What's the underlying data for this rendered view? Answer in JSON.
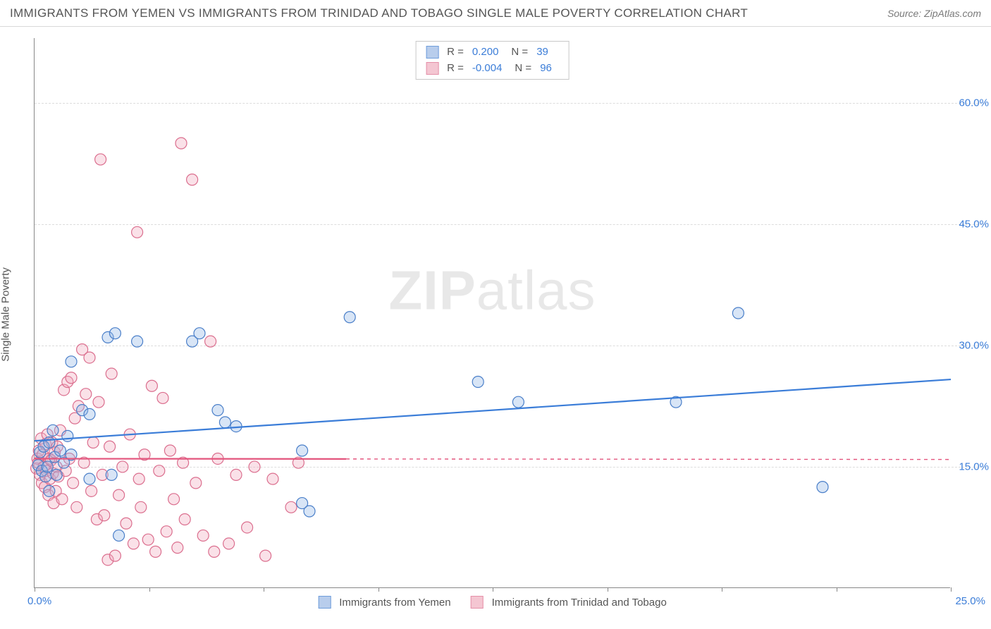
{
  "title": "IMMIGRANTS FROM YEMEN VS IMMIGRANTS FROM TRINIDAD AND TOBAGO SINGLE MALE POVERTY CORRELATION CHART",
  "source": "Source: ZipAtlas.com",
  "ylabel": "Single Male Poverty",
  "watermark_bold": "ZIP",
  "watermark_light": "atlas",
  "chart": {
    "type": "scatter",
    "background_color": "#ffffff",
    "grid_color": "#dcdcdc",
    "axis_color": "#888888",
    "tick_label_color": "#3b7dd8",
    "xlim": [
      0,
      25
    ],
    "ylim": [
      0,
      68
    ],
    "ytick_values": [
      15,
      30,
      45,
      60
    ],
    "ytick_labels": [
      "15.0%",
      "30.0%",
      "45.0%",
      "60.0%"
    ],
    "xtick_values": [
      0,
      3.125,
      6.25,
      9.375,
      12.5,
      15.625,
      18.75,
      21.875,
      25
    ],
    "xaxis_label_min": "0.0%",
    "xaxis_label_max": "25.0%",
    "marker_radius": 8,
    "marker_stroke_width": 1.2,
    "marker_fill_opacity": 0.35,
    "trend_line_width": 2.2,
    "trend_dash_width": 1.4
  },
  "series": [
    {
      "name": "Immigrants from Yemen",
      "swatch_fill": "#b8cdec",
      "swatch_border": "#6f9ddb",
      "marker_fill": "#8eb4e6",
      "marker_stroke": "#4a7fc9",
      "line_color": "#3b7dd8",
      "stats": {
        "R": "0.200",
        "N": "39"
      },
      "trend": {
        "x1": 0,
        "y1": 18.2,
        "x2": 25,
        "y2": 25.8,
        "solid_to_x": 25
      },
      "points": [
        [
          0.1,
          15.2
        ],
        [
          0.15,
          16.8
        ],
        [
          0.2,
          14.5
        ],
        [
          0.25,
          17.5
        ],
        [
          0.3,
          13.8
        ],
        [
          0.35,
          15.0
        ],
        [
          0.4,
          18.0
        ],
        [
          0.4,
          12.0
        ],
        [
          0.5,
          19.5
        ],
        [
          0.55,
          16.2
        ],
        [
          0.6,
          14.0
        ],
        [
          0.7,
          17.0
        ],
        [
          0.8,
          15.5
        ],
        [
          0.9,
          18.8
        ],
        [
          1.0,
          16.5
        ],
        [
          1.0,
          28.0
        ],
        [
          1.3,
          22.0
        ],
        [
          1.5,
          21.5
        ],
        [
          1.5,
          13.5
        ],
        [
          2.0,
          31.0
        ],
        [
          2.1,
          14.0
        ],
        [
          2.2,
          31.5
        ],
        [
          2.3,
          6.5
        ],
        [
          2.8,
          30.5
        ],
        [
          4.3,
          30.5
        ],
        [
          4.5,
          31.5
        ],
        [
          5.0,
          22.0
        ],
        [
          5.2,
          20.5
        ],
        [
          5.5,
          20.0
        ],
        [
          7.3,
          17.0
        ],
        [
          7.3,
          10.5
        ],
        [
          7.5,
          9.5
        ],
        [
          8.6,
          33.5
        ],
        [
          12.1,
          25.5
        ],
        [
          13.2,
          23.0
        ],
        [
          17.5,
          23.0
        ],
        [
          19.2,
          34.0
        ],
        [
          21.5,
          12.5
        ]
      ]
    },
    {
      "name": "Immigrants from Trinidad and Tobago",
      "swatch_fill": "#f4c6d2",
      "swatch_border": "#e58fa8",
      "marker_fill": "#f2a8bc",
      "marker_stroke": "#db6e8e",
      "line_color": "#e3557d",
      "stats": {
        "R": "-0.004",
        "N": "96"
      },
      "trend": {
        "x1": 0,
        "y1": 16.0,
        "x2": 25,
        "y2": 15.9,
        "solid_to_x": 8.5
      },
      "points": [
        [
          0.05,
          14.8
        ],
        [
          0.08,
          16.0
        ],
        [
          0.1,
          15.5
        ],
        [
          0.12,
          17.0
        ],
        [
          0.15,
          14.0
        ],
        [
          0.18,
          18.5
        ],
        [
          0.2,
          13.0
        ],
        [
          0.22,
          16.5
        ],
        [
          0.25,
          15.0
        ],
        [
          0.28,
          12.5
        ],
        [
          0.3,
          17.8
        ],
        [
          0.32,
          14.5
        ],
        [
          0.35,
          19.0
        ],
        [
          0.38,
          11.5
        ],
        [
          0.4,
          16.0
        ],
        [
          0.42,
          13.5
        ],
        [
          0.45,
          15.8
        ],
        [
          0.48,
          18.0
        ],
        [
          0.5,
          14.2
        ],
        [
          0.52,
          10.5
        ],
        [
          0.55,
          16.8
        ],
        [
          0.58,
          12.0
        ],
        [
          0.6,
          15.0
        ],
        [
          0.62,
          17.5
        ],
        [
          0.65,
          13.8
        ],
        [
          0.7,
          19.5
        ],
        [
          0.75,
          11.0
        ],
        [
          0.8,
          24.5
        ],
        [
          0.85,
          14.5
        ],
        [
          0.9,
          25.5
        ],
        [
          0.95,
          16.0
        ],
        [
          1.0,
          26.0
        ],
        [
          1.05,
          13.0
        ],
        [
          1.1,
          21.0
        ],
        [
          1.15,
          10.0
        ],
        [
          1.2,
          22.5
        ],
        [
          1.3,
          29.5
        ],
        [
          1.35,
          15.5
        ],
        [
          1.4,
          24.0
        ],
        [
          1.5,
          28.5
        ],
        [
          1.55,
          12.0
        ],
        [
          1.6,
          18.0
        ],
        [
          1.7,
          8.5
        ],
        [
          1.75,
          23.0
        ],
        [
          1.8,
          53.0
        ],
        [
          1.85,
          14.0
        ],
        [
          1.9,
          9.0
        ],
        [
          2.0,
          3.5
        ],
        [
          2.05,
          17.5
        ],
        [
          2.1,
          26.5
        ],
        [
          2.2,
          4.0
        ],
        [
          2.3,
          11.5
        ],
        [
          2.4,
          15.0
        ],
        [
          2.5,
          8.0
        ],
        [
          2.6,
          19.0
        ],
        [
          2.7,
          5.5
        ],
        [
          2.8,
          44.0
        ],
        [
          2.85,
          13.5
        ],
        [
          2.9,
          10.0
        ],
        [
          3.0,
          16.5
        ],
        [
          3.1,
          6.0
        ],
        [
          3.2,
          25.0
        ],
        [
          3.3,
          4.5
        ],
        [
          3.4,
          14.5
        ],
        [
          3.5,
          23.5
        ],
        [
          3.6,
          7.0
        ],
        [
          3.7,
          17.0
        ],
        [
          3.8,
          11.0
        ],
        [
          3.9,
          5.0
        ],
        [
          4.0,
          55.0
        ],
        [
          4.05,
          15.5
        ],
        [
          4.1,
          8.5
        ],
        [
          4.3,
          50.5
        ],
        [
          4.4,
          13.0
        ],
        [
          4.6,
          6.5
        ],
        [
          4.8,
          30.5
        ],
        [
          4.9,
          4.5
        ],
        [
          5.0,
          16.0
        ],
        [
          5.3,
          5.5
        ],
        [
          5.5,
          14.0
        ],
        [
          5.8,
          7.5
        ],
        [
          6.0,
          15.0
        ],
        [
          6.3,
          4.0
        ],
        [
          6.5,
          13.5
        ],
        [
          7.0,
          10.0
        ],
        [
          7.2,
          15.5
        ]
      ]
    }
  ]
}
